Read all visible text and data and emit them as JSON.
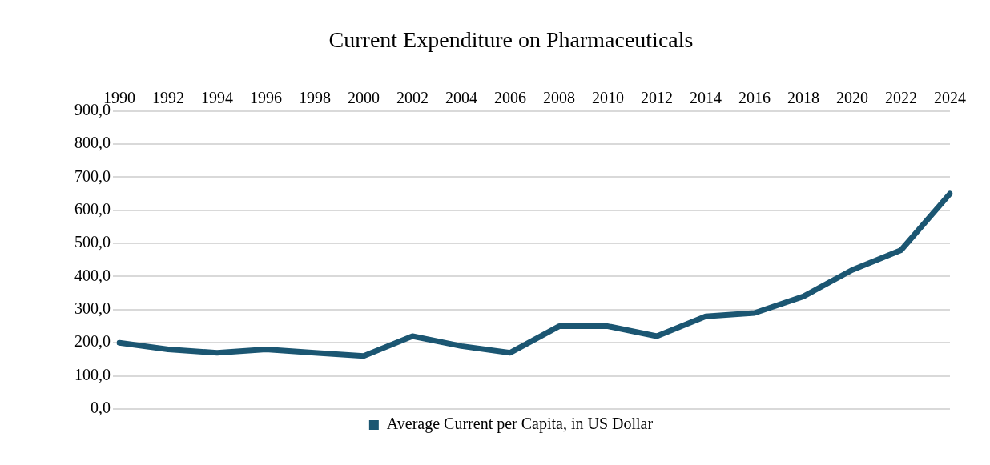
{
  "chart_data": {
    "type": "line",
    "title": "Current Expenditure on Pharmaceuticals",
    "categories": [
      "1990",
      "1992",
      "1994",
      "1996",
      "1998",
      "2000",
      "2002",
      "2004",
      "2006",
      "2008",
      "2010",
      "2012",
      "2014",
      "2016",
      "2018",
      "2020",
      "2022",
      "2024"
    ],
    "series": [
      {
        "name": "Average Current per Capita, in US Dollar",
        "color": "#1b5672",
        "values": [
          200,
          180,
          170,
          180,
          170,
          160,
          220,
          190,
          170,
          250,
          250,
          220,
          280,
          290,
          340,
          420,
          480,
          650
        ]
      }
    ],
    "ylim": [
      0,
      900
    ],
    "yticks": [
      {
        "value": 0,
        "label": "0,0"
      },
      {
        "value": 100,
        "label": "100,0"
      },
      {
        "value": 200,
        "label": "200,0"
      },
      {
        "value": 300,
        "label": "300,0"
      },
      {
        "value": 400,
        "label": "400,0"
      },
      {
        "value": 500,
        "label": "500,0"
      },
      {
        "value": 600,
        "label": "600,0"
      },
      {
        "value": 700,
        "label": "700,0"
      },
      {
        "value": 800,
        "label": "800,0"
      },
      {
        "value": 900,
        "label": "900,0"
      }
    ],
    "grid": "y",
    "legend": "bottom",
    "marker": "none",
    "line_style": "solid"
  }
}
